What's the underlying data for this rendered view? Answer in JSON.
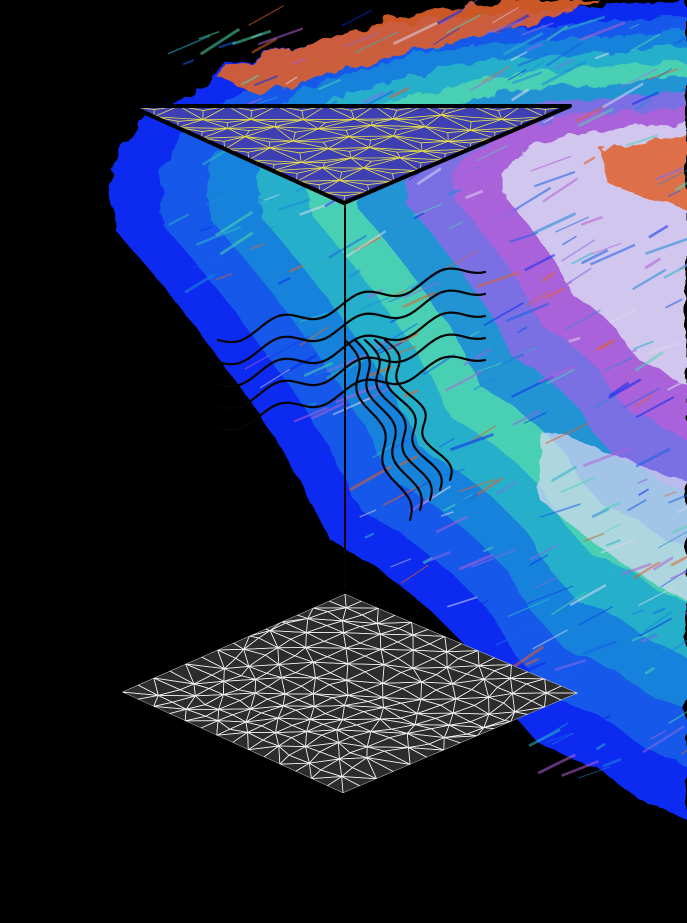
{
  "colors": {
    "background": "#000000",
    "top_triangle_fill": "#3f3fb4",
    "top_mesh_lines": "#e8e04a",
    "bottom_mesh_fill": "#2c2c2c",
    "bottom_mesh_lines": "#f2f2f2",
    "wave_lines": "#050505",
    "vertical_rule": "#050505",
    "rainbow_bands": [
      "#0a2cf0",
      "#1560e8",
      "#1b8ad8",
      "#2cb7c8",
      "#4fd6b0",
      "#8a6ae6",
      "#b35fd8",
      "#d8d8f0",
      "#e0602a"
    ]
  },
  "icons": [
    "triangle-mesh-icon",
    "square-mesh-icon",
    "wave-lines-icon"
  ]
}
